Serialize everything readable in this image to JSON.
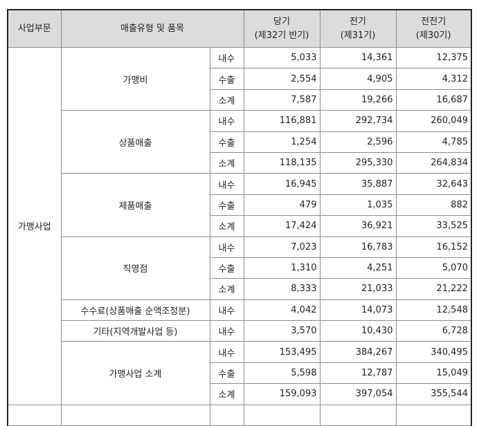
{
  "header": {
    "segment": "사업부문",
    "type": "매출유형 및 품목",
    "current": [
      "당기",
      "(제32기 반기)"
    ],
    "prior": [
      "전기",
      "(제31기)"
    ],
    "prior2": [
      "전전기",
      "(제30기)"
    ]
  },
  "segment_name": "가맹사업",
  "groups": [
    {
      "name": "가맹비",
      "rows": [
        {
          "kind": "내수",
          "values": [
            "5,033",
            "14,361",
            "12,375"
          ]
        },
        {
          "kind": "수출",
          "values": [
            "2,554",
            "4,905",
            "4,312"
          ]
        },
        {
          "kind": "소계",
          "values": [
            "7,587",
            "19,266",
            "16,687"
          ]
        }
      ]
    },
    {
      "name": "상품매출",
      "rows": [
        {
          "kind": "내수",
          "values": [
            "116,881",
            "292,734",
            "260,049"
          ]
        },
        {
          "kind": "수출",
          "values": [
            "1,254",
            "2,596",
            "4,785"
          ]
        },
        {
          "kind": "소계",
          "values": [
            "118,135",
            "295,330",
            "264,834"
          ]
        }
      ]
    },
    {
      "name": "제품매출",
      "rows": [
        {
          "kind": "내수",
          "values": [
            "16,945",
            "35,887",
            "32,643"
          ]
        },
        {
          "kind": "수출",
          "values": [
            "479",
            "1,035",
            "882"
          ]
        },
        {
          "kind": "소계",
          "values": [
            "17,424",
            "36,921",
            "33,525"
          ]
        }
      ]
    },
    {
      "name": "직영점",
      "rows": [
        {
          "kind": "내수",
          "values": [
            "7,023",
            "16,783",
            "16,152"
          ]
        },
        {
          "kind": "수출",
          "values": [
            "1,310",
            "4,251",
            "5,070"
          ]
        },
        {
          "kind": "소계",
          "values": [
            "8,333",
            "21,033",
            "21,222"
          ]
        }
      ]
    },
    {
      "name": "수수료(상품매출 순액조정분)",
      "rows": [
        {
          "kind": "내수",
          "values": [
            "4,042",
            "14,073",
            "12,548"
          ]
        }
      ]
    },
    {
      "name": "기타(지역개발사업 등)",
      "rows": [
        {
          "kind": "내수",
          "values": [
            "3,570",
            "10,430",
            "6,728"
          ]
        }
      ]
    },
    {
      "name": "가맹사업 소계",
      "rows": [
        {
          "kind": "내수",
          "values": [
            "153,495",
            "384,267",
            "340,495"
          ]
        },
        {
          "kind": "수출",
          "values": [
            "5,598",
            "12,787",
            "15,049"
          ]
        },
        {
          "kind": "소계",
          "values": [
            "159,093",
            "397,054",
            "355,544"
          ]
        }
      ]
    }
  ]
}
